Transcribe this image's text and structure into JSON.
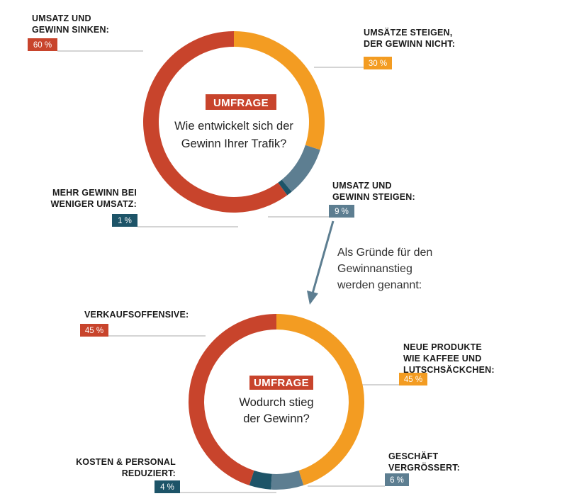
{
  "colors": {
    "red": "#c8442c",
    "orange": "#f39c22",
    "slate": "#5d7e91",
    "teal": "#1d5468",
    "leader": "#aaaaaa"
  },
  "chart_data": [
    {
      "type": "donut",
      "badge": "UMFRAGE",
      "question": [
        "Wie entwickelt sich der",
        "Gewinn Ihrer Trafik?"
      ],
      "slices": [
        {
          "label": [
            "UMSÄTZE STEIGEN,",
            "DER GEWINN NICHT:"
          ],
          "value": 30,
          "value_label": "30 %",
          "color": "#f39c22"
        },
        {
          "label": [
            "UMSATZ UND",
            "GEWINN STEIGEN:"
          ],
          "value": 9,
          "value_label": "9 %",
          "color": "#5d7e91"
        },
        {
          "label": [
            "MEHR GEWINN BEI",
            "WENIGER UMSATZ:"
          ],
          "value": 1,
          "value_label": "1 %",
          "color": "#1d5468"
        },
        {
          "label": [
            "UMSATZ UND",
            "GEWINN SINKEN:"
          ],
          "value": 60,
          "value_label": "60 %",
          "color": "#c8442c"
        }
      ]
    },
    {
      "type": "donut",
      "badge": "UMFRAGE",
      "question": [
        "Wodurch stieg",
        "der Gewinn?"
      ],
      "slices": [
        {
          "label": [
            "NEUE PRODUKTE",
            "WIE KAFFEE UND",
            "LUTSCHSÄCKCHEN:"
          ],
          "value": 45,
          "value_label": "45 %",
          "color": "#f39c22"
        },
        {
          "label": [
            "GESCHÄFT",
            "VERGRÖSSERT:"
          ],
          "value": 6,
          "value_label": "6 %",
          "color": "#5d7e91"
        },
        {
          "label": [
            "KOSTEN & PERSONAL",
            "REDUZIERT:"
          ],
          "value": 4,
          "value_label": "4 %",
          "color": "#1d5468"
        },
        {
          "label": [
            "VERKAUFSOFFENSIVE:"
          ],
          "value": 45,
          "value_label": "45 %",
          "color": "#c8442c"
        }
      ]
    }
  ],
  "connector_note": [
    "Als Gründe für den",
    "Gewinnanstieg",
    "werden genannt:"
  ]
}
